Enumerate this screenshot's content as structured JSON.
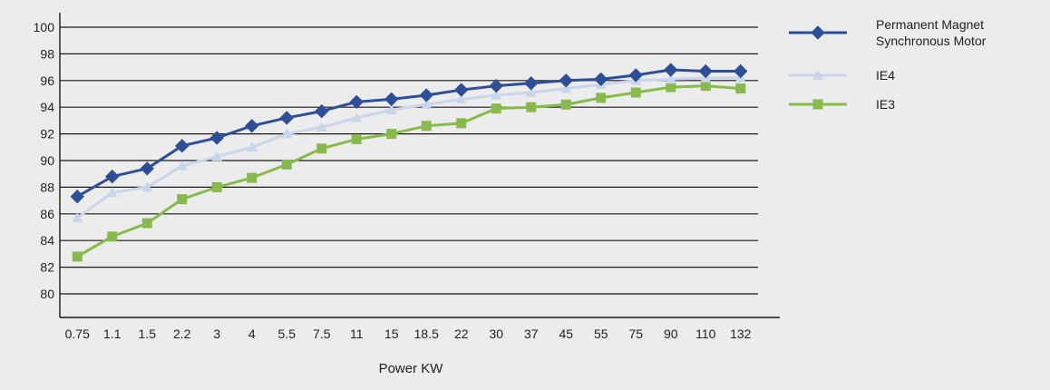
{
  "chart_data": {
    "type": "line",
    "xlabel": "Power KW",
    "ylabel": "",
    "categories": [
      "0.75",
      "1.1",
      "1.5",
      "2.2",
      "3",
      "4",
      "5.5",
      "7.5",
      "11",
      "15",
      "18.5",
      "22",
      "30",
      "37",
      "45",
      "55",
      "75",
      "90",
      "110",
      "132"
    ],
    "yticks": [
      "100",
      "98",
      "96",
      "94",
      "92",
      "90",
      "88",
      "86",
      "84",
      "82",
      "80"
    ],
    "ylim": [
      80,
      100
    ],
    "grid": "horizontal",
    "legend_position": "right",
    "series": [
      {
        "name_lines": [
          "Permanent Magnet",
          "Synchronous Motor"
        ],
        "color": "#2d4f9a",
        "marker": "diamond",
        "values": [
          87.3,
          88.8,
          89.4,
          91.1,
          91.7,
          92.6,
          93.2,
          93.7,
          94.4,
          94.6,
          94.9,
          95.3,
          95.6,
          95.8,
          96.0,
          96.1,
          96.4,
          96.8,
          96.7,
          96.7
        ]
      },
      {
        "name_lines": [
          "IE4"
        ],
        "color": "#c7d6ea",
        "marker": "triangle",
        "values": [
          85.7,
          87.6,
          88.0,
          89.6,
          90.3,
          91.0,
          92.0,
          92.5,
          93.2,
          93.8,
          94.2,
          94.6,
          94.9,
          95.1,
          95.4,
          95.7,
          96.0,
          96.1,
          96.2,
          96.2
        ]
      },
      {
        "name_lines": [
          "IE3"
        ],
        "color": "#86bb4c",
        "marker": "square",
        "values": [
          82.8,
          84.3,
          85.3,
          87.1,
          88.0,
          88.7,
          89.7,
          90.9,
          91.6,
          92.0,
          92.6,
          92.8,
          93.9,
          94.0,
          94.2,
          94.7,
          95.1,
          95.5,
          95.6,
          95.4
        ]
      }
    ]
  }
}
